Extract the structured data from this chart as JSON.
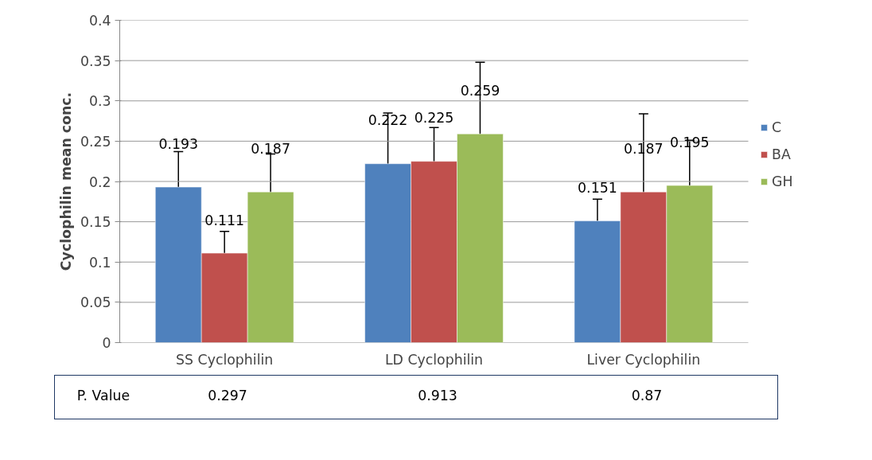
{
  "chart_data": {
    "type": "bar",
    "ylabel": "Cyclophilin mean conc.",
    "categories": [
      "SS Cyclophilin",
      "LD Cyclophilin",
      "Liver Cyclophilin"
    ],
    "series": [
      {
        "name": "C",
        "color": "#4f81bd",
        "values": [
          0.193,
          0.222,
          0.151
        ],
        "errors": [
          0.044,
          0.063,
          0.027
        ]
      },
      {
        "name": "BA",
        "color": "#c0504d",
        "values": [
          0.111,
          0.225,
          0.187
        ],
        "errors": [
          0.027,
          0.042,
          0.097
        ]
      },
      {
        "name": "GH",
        "color": "#9bbb59",
        "values": [
          0.187,
          0.259,
          0.195
        ],
        "errors": [
          0.047,
          0.089,
          0.056
        ]
      }
    ],
    "ylim": [
      0,
      0.4
    ],
    "yticks": [
      0,
      0.05,
      0.1,
      0.15,
      0.2,
      0.25,
      0.3,
      0.35,
      0.4
    ],
    "grid": "y",
    "legend": "right",
    "data_labels": true,
    "annotations": [
      "P. Value",
      "0.297",
      "0.913",
      "0.87"
    ]
  }
}
